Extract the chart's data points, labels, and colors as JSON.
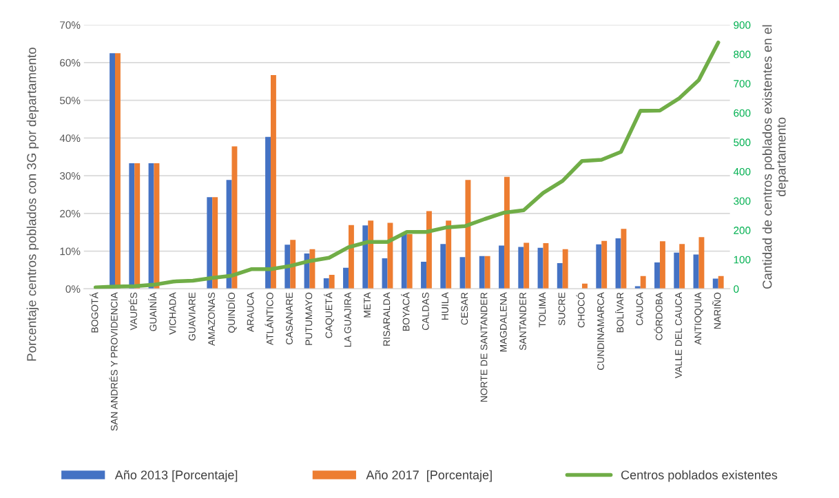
{
  "chart_data": {
    "type": "bar",
    "ylabel": "Porcentaje centros poblados con 3G por departamento",
    "y2label": "Cantidad de centros poblados existentes en el departamento",
    "categories": [
      "BOGOTÁ",
      "SAN ANDRÉS Y PROVIDENCIA",
      "VAUPÉS",
      "GUAINÍA",
      "VICHADA",
      "GUAVIARE",
      "AMAZONAS",
      "QUINDÍO",
      "ARAUCA",
      "ATLÁNTICO",
      "CASANARE",
      "PUTUMAYO",
      "CAQUETÁ",
      "LA GUAJIRA",
      "META",
      "RISARALDA",
      "BOYACÁ",
      "CALDAS",
      "HUILA",
      "CESAR",
      "NORTE DE SANTANDER",
      "MAGDALENA",
      "SANTANDER",
      "TOLIMA",
      "SUCRE",
      "CHOCÓ",
      "CUNDINAMARCA",
      "BOLÍVAR",
      "CAUCA",
      "CÓRDOBA",
      "VALLE DEL CAUCA",
      "ANTIOQUIA",
      "NARIÑO"
    ],
    "series": [
      {
        "name": "Año 2013 [Porcentaje]",
        "color": "#4472c4",
        "values": [
          null,
          62.5,
          33.3,
          33.3,
          null,
          null,
          24.3,
          28.9,
          null,
          40.3,
          11.7,
          9.4,
          2.8,
          5.6,
          16.8,
          8.1,
          14.5,
          7.2,
          11.9,
          8.4,
          8.7,
          11.5,
          11.1,
          10.9,
          6.8,
          0,
          11.8,
          13.4,
          0.7,
          7.0,
          9.6,
          9.1,
          2.7
        ]
      },
      {
        "name": "Año 2017  [Porcentaje]",
        "color": "#ed7d31",
        "values": [
          null,
          62.5,
          33.3,
          33.3,
          null,
          null,
          24.3,
          37.8,
          null,
          56.7,
          13.0,
          10.5,
          3.7,
          16.9,
          18.1,
          17.5,
          14.5,
          20.6,
          18.1,
          28.9,
          8.7,
          29.7,
          12.2,
          12.1,
          10.5,
          1.4,
          12.7,
          15.9,
          3.4,
          12.6,
          11.9,
          13.7,
          3.4
        ]
      },
      {
        "name": "Centros poblados existentes",
        "type": "line",
        "axis": "y2",
        "color": "#70ad47",
        "values": [
          5,
          8,
          9,
          14,
          25,
          28,
          37,
          45,
          67,
          67,
          78,
          95,
          106,
          142,
          160,
          160,
          194,
          194,
          209,
          214,
          238,
          260,
          268,
          327,
          368,
          436,
          440,
          467,
          607,
          608,
          650,
          712,
          840
        ]
      }
    ],
    "ylim": [
      0,
      70
    ],
    "yticks": [
      {
        "value": 0,
        "label": "0%"
      },
      {
        "value": 10,
        "label": "10%"
      },
      {
        "value": 20,
        "label": "20%"
      },
      {
        "value": 30,
        "label": "30%"
      },
      {
        "value": 40,
        "label": "40%"
      },
      {
        "value": 50,
        "label": "50%"
      },
      {
        "value": 60,
        "label": "60%"
      },
      {
        "value": 70,
        "label": "70%"
      }
    ],
    "y2lim": [
      0,
      900
    ],
    "y2ticks": [
      0,
      100,
      200,
      300,
      400,
      500,
      600,
      700,
      800,
      900
    ],
    "grid": "y",
    "legend": "bottom",
    "marker": "none",
    "line_style": "solid"
  }
}
